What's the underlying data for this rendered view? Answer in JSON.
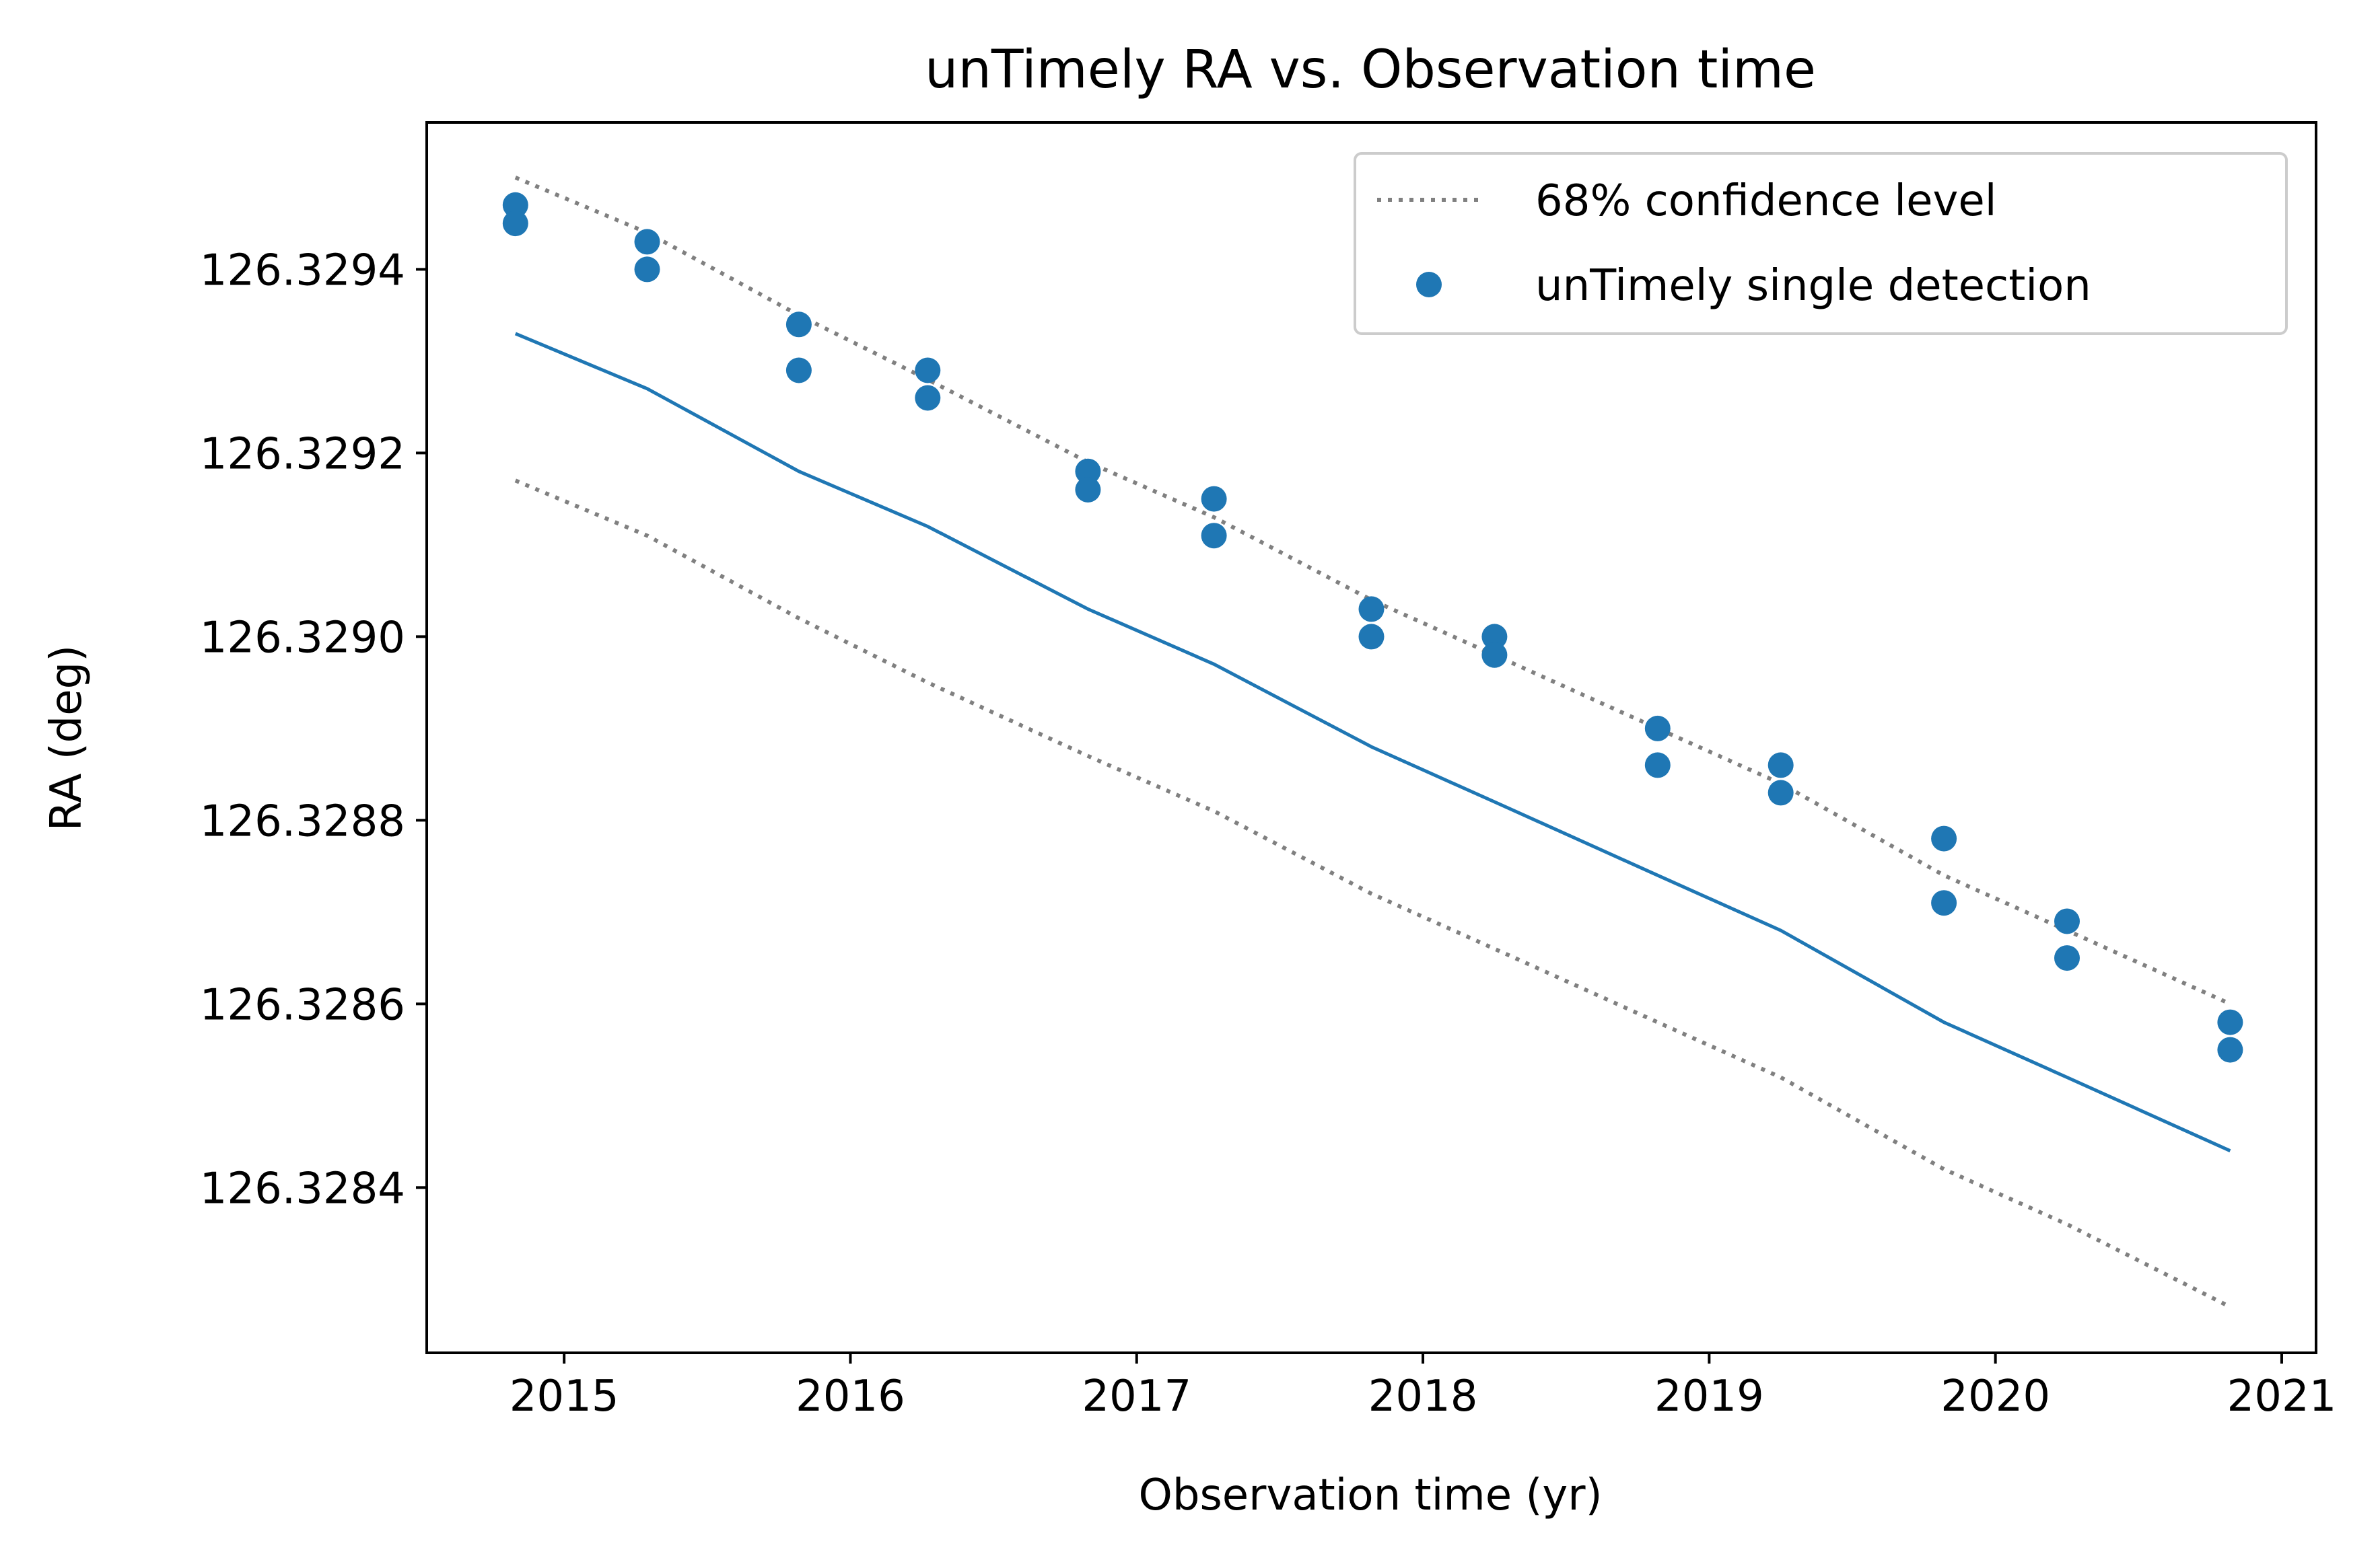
{
  "chart_data": {
    "type": "scatter",
    "title": "unTimely RA vs. Observation time",
    "xlabel": "Observation time (yr)",
    "ylabel": "RA (deg)",
    "xlim": [
      2014.52,
      2021.12
    ],
    "ylim": [
      126.32822,
      126.32956
    ],
    "xticks": [
      2015,
      2016,
      2017,
      2018,
      2019,
      2020,
      2021
    ],
    "xtick_labels": [
      "2015",
      "2016",
      "2017",
      "2018",
      "2019",
      "2020",
      "2021"
    ],
    "yticks": [
      126.3284,
      126.3286,
      126.3288,
      126.329,
      126.3292,
      126.3294
    ],
    "ytick_labels": [
      "126.3284",
      "126.3286",
      "126.3288",
      "126.3290",
      "126.3292",
      "126.3294"
    ],
    "grid": false,
    "legend": {
      "placement": "top-right",
      "entries": [
        {
          "label": "68% confidence level",
          "style": "dotted-line"
        },
        {
          "label": "unTimely single detection",
          "style": "marker"
        }
      ]
    },
    "colors": {
      "points": "#1f77b4",
      "fit": "#1f77b4",
      "confidence": "#808080"
    },
    "series": [
      {
        "name": "unTimely single detection",
        "kind": "scatter",
        "x": [
          2014.83,
          2014.83,
          2015.29,
          2015.29,
          2015.82,
          2015.82,
          2016.27,
          2016.27,
          2016.83,
          2016.83,
          2017.27,
          2017.27,
          2017.82,
          2017.82,
          2018.25,
          2018.25,
          2018.82,
          2018.82,
          2019.25,
          2019.25,
          2019.82,
          2019.82,
          2020.25,
          2020.25,
          2020.82,
          2020.82
        ],
        "y": [
          126.32947,
          126.32945,
          126.32943,
          126.3294,
          126.32934,
          126.32929,
          126.32929,
          126.32926,
          126.32918,
          126.32916,
          126.32915,
          126.32911,
          126.32903,
          126.329,
          126.329,
          126.32898,
          126.3289,
          126.32886,
          126.32886,
          126.32883,
          126.32878,
          126.32871,
          126.32869,
          126.32865,
          126.32858,
          126.32855
        ]
      },
      {
        "name": "fit",
        "kind": "line",
        "x": [
          2014.83,
          2015.29,
          2015.82,
          2016.27,
          2016.83,
          2017.27,
          2017.82,
          2018.25,
          2018.82,
          2019.25,
          2019.82,
          2020.25,
          2020.82
        ],
        "y": [
          126.32933,
          126.32927,
          126.32918,
          126.32912,
          126.32903,
          126.32897,
          126.32888,
          126.32882,
          126.32874,
          126.32868,
          126.32858,
          126.32852,
          126.32844
        ]
      },
      {
        "name": "68% confidence level",
        "kind": "dotted",
        "x": [
          2014.83,
          2015.29,
          2015.82,
          2016.27,
          2016.83,
          2017.27,
          2017.82,
          2018.25,
          2018.82,
          2019.25,
          2019.82,
          2020.25,
          2020.82
        ],
        "y": [
          126.3295,
          126.32944,
          126.32935,
          126.32928,
          126.32919,
          126.32913,
          126.32904,
          126.32898,
          126.3289,
          126.32884,
          126.32874,
          126.32868,
          126.3286
        ]
      },
      {
        "name": "68% confidence level",
        "kind": "dotted",
        "x": [
          2014.83,
          2015.29,
          2015.82,
          2016.27,
          2016.83,
          2017.27,
          2017.82,
          2018.25,
          2018.82,
          2019.25,
          2019.82,
          2020.25,
          2020.82
        ],
        "y": [
          126.32917,
          126.32911,
          126.32902,
          126.32895,
          126.32887,
          126.32881,
          126.32872,
          126.32866,
          126.32858,
          126.32852,
          126.32842,
          126.32836,
          126.32827
        ]
      }
    ]
  }
}
